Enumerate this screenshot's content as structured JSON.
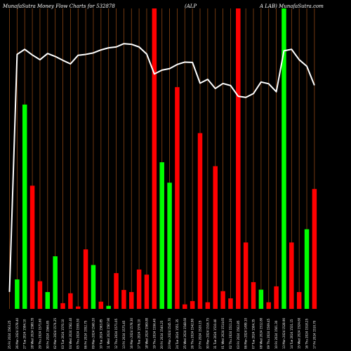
{
  "header": {
    "title_left": "MunafaSutra  Money Flow  Charts for 532878",
    "title_mid": "(ALP",
    "title_right": "A LAB) MunafaSutra.com"
  },
  "colors": {
    "background": "#000000",
    "grid": "#8B4513",
    "up": "#00ff00",
    "down": "#ff0000",
    "line": "#ffffff",
    "text": "#ffffff"
  },
  "chart_data": {
    "type": "bar",
    "grid": true,
    "y_axis_labels": "none",
    "bars": [
      {
        "label": "25 Fri 2024 1563.25",
        "value": 0.0,
        "color": "green"
      },
      {
        "label": "26 Mon 2024 1578.40",
        "value": 0.098,
        "color": "green"
      },
      {
        "label": "27 Tue 2024 1594.10",
        "value": 0.68,
        "color": "green"
      },
      {
        "label": "28 Wed 2024 1580.35",
        "value": 0.41,
        "color": "red"
      },
      {
        "label": "29 Thu 2024 1571.60",
        "value": 0.092,
        "color": "red"
      },
      {
        "label": "30 Fri 2024 1566.85",
        "value": 0.056,
        "color": "green"
      },
      {
        "label": "02 Mon 2024 1574.25",
        "value": 0.175,
        "color": "green"
      },
      {
        "label": "03 Tue 2024 1570.10",
        "value": 0.019,
        "color": "red"
      },
      {
        "label": "04 Wed 2024 1562.40",
        "value": 0.052,
        "color": "red"
      },
      {
        "label": "05 Thu 2024 1559.30",
        "value": 0.008,
        "color": "red"
      },
      {
        "label": "06 Fri 2024 1552.75",
        "value": 0.198,
        "color": "red"
      },
      {
        "label": "09 Mon 2024 1560.20",
        "value": 0.146,
        "color": "green"
      },
      {
        "label": "10 Tue 2024 1563.85",
        "value": 0.024,
        "color": "red"
      },
      {
        "label": "11 Wed 2024 1567.90",
        "value": 0.01,
        "color": "green"
      },
      {
        "label": "12 Thu 2024 1571.05",
        "value": 0.119,
        "color": "red"
      },
      {
        "label": "13 Fri 2024 1575.45",
        "value": 0.063,
        "color": "red"
      },
      {
        "label": "16 Mon 2024 1578.30",
        "value": 0.056,
        "color": "red"
      },
      {
        "label": "17 Tue 2024 1576.10",
        "value": 0.131,
        "color": "red"
      },
      {
        "label": "18 Wed 2024 1569.80",
        "value": 0.114,
        "color": "red"
      },
      {
        "label": "19 Thu 2024 1556.40",
        "value": 1.0,
        "color": "red"
      },
      {
        "label": "20 Fri 2024 1540.25",
        "value": 0.488,
        "color": "green"
      },
      {
        "label": "23 Mon 2024 1545.70",
        "value": 0.42,
        "color": "green"
      },
      {
        "label": "24 Tue 2024 1551.35",
        "value": 0.738,
        "color": "red"
      },
      {
        "label": "25 Wed 2024 1548.60",
        "value": 0.015,
        "color": "red"
      },
      {
        "label": "26 Thu 2024 1542.90",
        "value": 0.026,
        "color": "red"
      },
      {
        "label": "27 Fri 2024 1520.15",
        "value": 0.585,
        "color": "red"
      },
      {
        "label": "30 Mon 2024 1516.75",
        "value": 0.022,
        "color": "red"
      },
      {
        "label": "31 Tue 2024 1510.40",
        "value": 0.475,
        "color": "red"
      },
      {
        "label": "01 Wed 2024 1514.65",
        "value": 0.059,
        "color": "red"
      },
      {
        "label": "02 Thu 2024 1511.20",
        "value": 0.035,
        "color": "red"
      },
      {
        "label": "03 Fri 2024 1502.85",
        "value": 1.0,
        "color": "red"
      },
      {
        "label": "06 Mon 2024 1499.10",
        "value": 0.221,
        "color": "red"
      },
      {
        "label": "07 Tue 2024 1504.35",
        "value": 0.089,
        "color": "red"
      },
      {
        "label": "08 Wed 2024 1512.80",
        "value": 0.064,
        "color": "green"
      },
      {
        "label": "09 Thu 2024 1509.45",
        "value": 0.022,
        "color": "red"
      },
      {
        "label": "10 Fri 2024 1501.30",
        "value": 0.075,
        "color": "red"
      },
      {
        "label": "13 Mon 2024 1528.90",
        "value": 1.0,
        "color": "green"
      },
      {
        "label": "14 Tue 2024 1531.15",
        "value": 0.221,
        "color": "red"
      },
      {
        "label": "15 Wed 2024 1524.60",
        "value": 0.056,
        "color": "red"
      },
      {
        "label": "16 Thu 2024 1518.25",
        "value": 0.265,
        "color": "green"
      },
      {
        "label": "17 Fri 2024 1510.70",
        "value": 0.399,
        "color": "red"
      }
    ],
    "line": [
      0.05,
      0.85,
      0.867,
      0.848,
      0.832,
      0.853,
      0.843,
      0.83,
      0.818,
      0.847,
      0.85,
      0.855,
      0.865,
      0.872,
      0.875,
      0.886,
      0.884,
      0.875,
      0.851,
      0.784,
      0.797,
      0.802,
      0.816,
      0.824,
      0.823,
      0.753,
      0.766,
      0.735,
      0.752,
      0.745,
      0.709,
      0.705,
      0.718,
      0.757,
      0.751,
      0.724,
      0.862,
      0.867,
      0.832,
      0.81,
      0.746
    ]
  }
}
